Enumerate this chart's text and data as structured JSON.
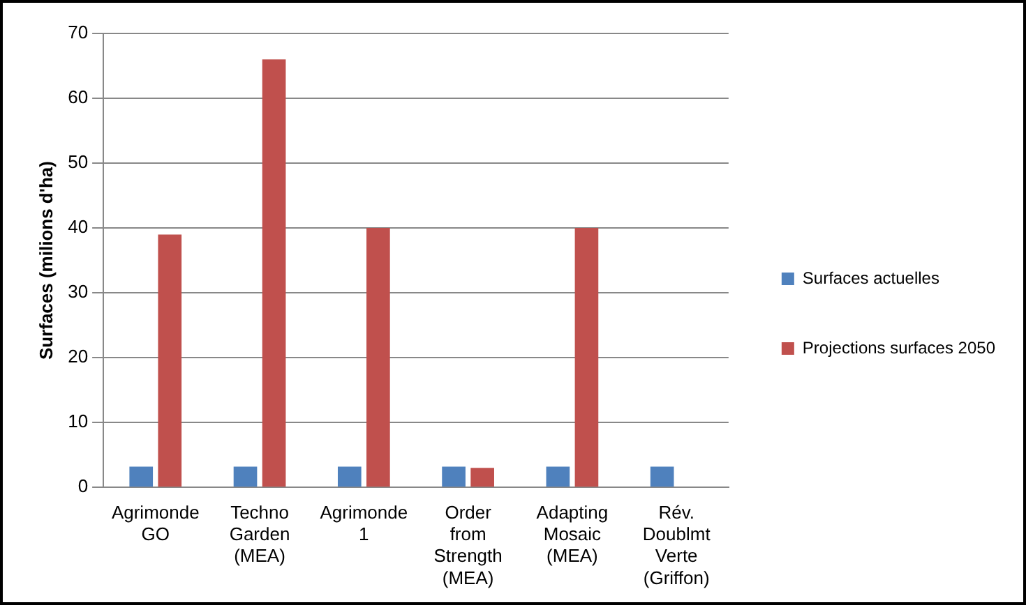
{
  "chart_data": {
    "type": "bar",
    "ylabel": "Surfaces (milions d'ha)",
    "categories": [
      "Agrimonde GO",
      "Techno Garden (MEA)",
      "Agrimonde 1",
      "Order from Strength (MEA)",
      "Adapting Mosaic (MEA)",
      "Rév. Doublmt Verte (Griffon)"
    ],
    "series": [
      {
        "name": "Surfaces actuelles",
        "color": "#4f81bd",
        "values": [
          3.2,
          3.2,
          3.2,
          3.2,
          3.2,
          3.2
        ]
      },
      {
        "name": "Projections surfaces 2050",
        "color": "#c0504d",
        "values": [
          39,
          66,
          40,
          3,
          40,
          null
        ]
      }
    ],
    "ylim": [
      0,
      70
    ],
    "yticks": [
      0,
      10,
      20,
      30,
      40,
      50,
      60,
      70
    ],
    "grid": "y",
    "legend": "right"
  }
}
